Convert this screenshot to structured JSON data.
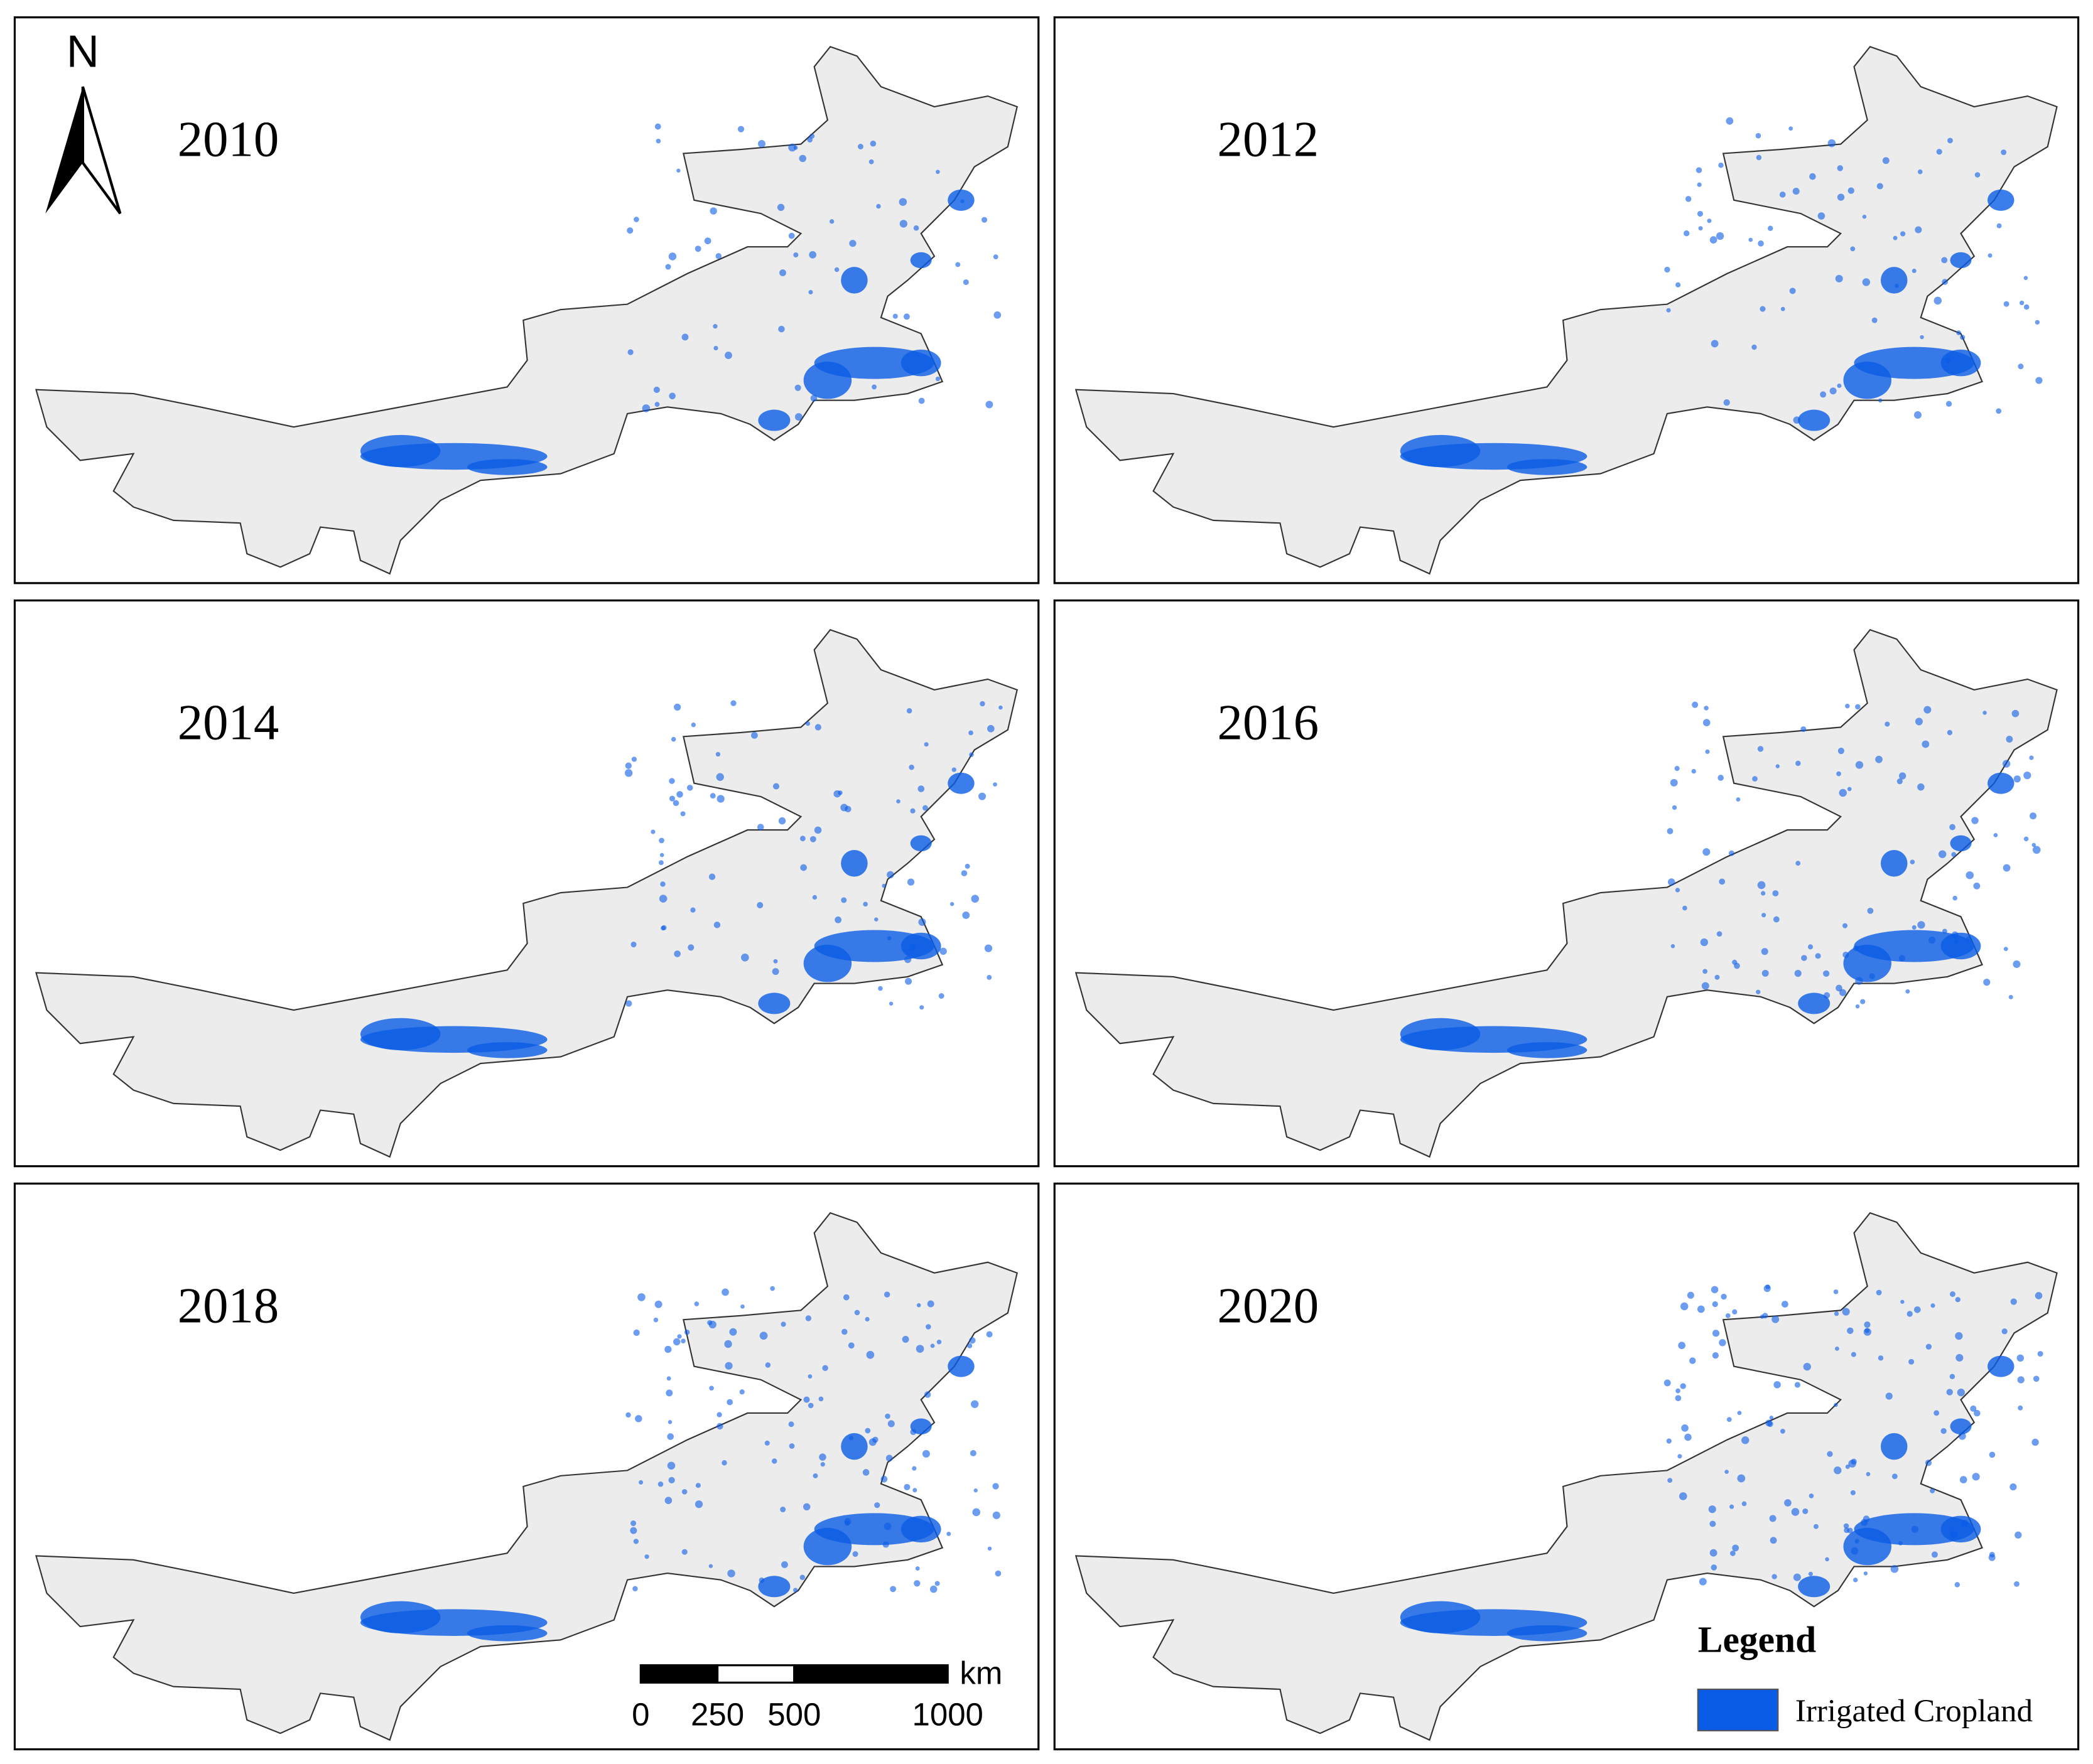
{
  "panels": [
    {
      "year": "2010"
    },
    {
      "year": "2012"
    },
    {
      "year": "2014"
    },
    {
      "year": "2016"
    },
    {
      "year": "2018"
    },
    {
      "year": "2020"
    }
  ],
  "north_arrow": "N",
  "scale_bar": {
    "unit": "km",
    "ticks": [
      0,
      250,
      500,
      1000
    ]
  },
  "legend": {
    "title": "Legend",
    "items": [
      {
        "label": "Irrigated Cropland",
        "color": "#0a5ce6"
      }
    ]
  }
}
